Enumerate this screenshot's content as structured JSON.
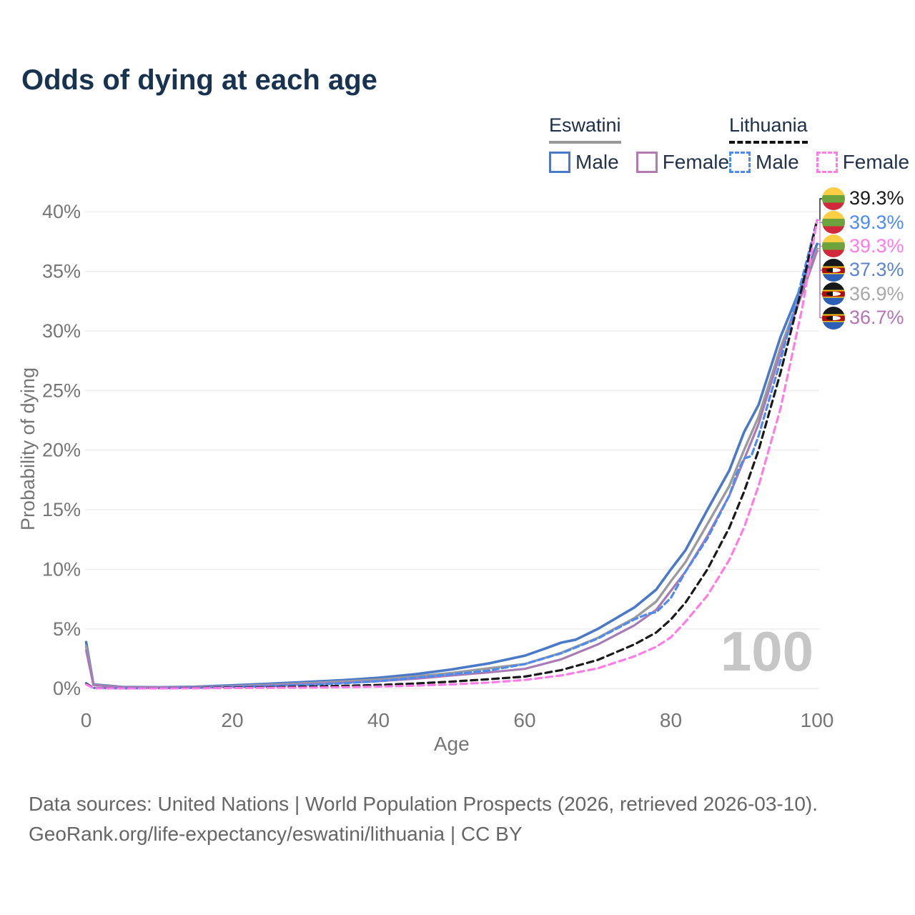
{
  "title": "Odds of dying at each age",
  "watermark": "100",
  "legend": {
    "eswatini": {
      "title": "Eswatini",
      "male": "Male",
      "female": "Female"
    },
    "lithuania": {
      "title": "Lithuania",
      "male": "Male",
      "female": "Female"
    }
  },
  "footer": {
    "line1": "Data sources: United Nations | World Population Prospects (2026, retrieved 2026-03-10).",
    "line2": "GeoRank.org/life-expectancy/eswatini/lithuania | CC BY"
  },
  "colors": {
    "title_text": "#18334f",
    "axis_text": "#767676",
    "gridline": "#ededed",
    "eswatini_male": "#4a79c8",
    "eswatini_total": "#9b9b9b",
    "eswatini_female": "#a97bb5",
    "lithuania_male": "#4d8bf0",
    "lithuania_total": "#1a1a1a",
    "lithuania_female": "#ff7ce6",
    "watermark": "#c6c6c6"
  },
  "chart_data": {
    "type": "line",
    "title": "Odds of dying at each age",
    "xlabel": "Age",
    "ylabel": "Probability of dying",
    "xlim": [
      0,
      100
    ],
    "ylim": [
      0,
      40
    ],
    "x_ticks": [
      0,
      20,
      40,
      60,
      80,
      100
    ],
    "y_ticks": [
      0,
      5,
      10,
      15,
      20,
      25,
      30,
      35,
      40
    ],
    "y_tick_suffix": "%",
    "grid": "horizontal",
    "legend_position": "top-right",
    "series": [
      {
        "key": "es_male",
        "name": "Eswatini Male",
        "style": "solid",
        "color": "#4a79c8",
        "width": 3.6,
        "dash": null,
        "points": [
          [
            0,
            3.9
          ],
          [
            1,
            0.35
          ],
          [
            5,
            0.13
          ],
          [
            10,
            0.11
          ],
          [
            15,
            0.15
          ],
          [
            20,
            0.27
          ],
          [
            25,
            0.4
          ],
          [
            30,
            0.55
          ],
          [
            35,
            0.7
          ],
          [
            40,
            0.9
          ],
          [
            45,
            1.2
          ],
          [
            50,
            1.6
          ],
          [
            55,
            2.1
          ],
          [
            60,
            2.75
          ],
          [
            63,
            3.4
          ],
          [
            65,
            3.85
          ],
          [
            67,
            4.1
          ],
          [
            70,
            5.0
          ],
          [
            75,
            6.8
          ],
          [
            78,
            8.3
          ],
          [
            80,
            10.0
          ],
          [
            82,
            11.6
          ],
          [
            85,
            15.0
          ],
          [
            88,
            18.3
          ],
          [
            90,
            21.5
          ],
          [
            92,
            23.8
          ],
          [
            95,
            29.5
          ],
          [
            98,
            34.0
          ],
          [
            100,
            37.3
          ]
        ]
      },
      {
        "key": "es_total",
        "name": "Eswatini Total",
        "style": "solid",
        "color": "#9b9b9b",
        "width": 3.4,
        "dash": null,
        "points": [
          [
            0,
            3.55
          ],
          [
            1,
            0.32
          ],
          [
            5,
            0.11
          ],
          [
            10,
            0.09
          ],
          [
            15,
            0.12
          ],
          [
            20,
            0.2
          ],
          [
            25,
            0.31
          ],
          [
            30,
            0.44
          ],
          [
            35,
            0.58
          ],
          [
            40,
            0.75
          ],
          [
            45,
            1.0
          ],
          [
            50,
            1.3
          ],
          [
            55,
            1.7
          ],
          [
            60,
            2.05
          ],
          [
            65,
            3.0
          ],
          [
            70,
            4.25
          ],
          [
            75,
            5.9
          ],
          [
            78,
            7.3
          ],
          [
            80,
            9.0
          ],
          [
            82,
            10.6
          ],
          [
            85,
            13.8
          ],
          [
            88,
            17.0
          ],
          [
            90,
            20.0
          ],
          [
            92,
            22.8
          ],
          [
            95,
            28.6
          ],
          [
            98,
            33.5
          ],
          [
            100,
            36.9
          ]
        ]
      },
      {
        "key": "es_female",
        "name": "Eswatini Female",
        "style": "solid",
        "color": "#a97bb5",
        "width": 3.2,
        "dash": null,
        "points": [
          [
            0,
            3.2
          ],
          [
            1,
            0.3
          ],
          [
            5,
            0.1
          ],
          [
            10,
            0.08
          ],
          [
            15,
            0.1
          ],
          [
            20,
            0.16
          ],
          [
            25,
            0.25
          ],
          [
            30,
            0.36
          ],
          [
            35,
            0.48
          ],
          [
            40,
            0.62
          ],
          [
            45,
            0.82
          ],
          [
            50,
            1.1
          ],
          [
            55,
            1.35
          ],
          [
            60,
            1.65
          ],
          [
            65,
            2.45
          ],
          [
            70,
            3.7
          ],
          [
            75,
            5.3
          ],
          [
            78,
            6.6
          ],
          [
            80,
            8.2
          ],
          [
            82,
            9.8
          ],
          [
            85,
            12.8
          ],
          [
            88,
            16.2
          ],
          [
            90,
            19.2
          ],
          [
            92,
            22.2
          ],
          [
            95,
            28.2
          ],
          [
            98,
            33.2
          ],
          [
            100,
            36.7
          ]
        ]
      },
      {
        "key": "lt_male",
        "name": "Lithuania Male",
        "style": "dashed",
        "color": "#4d8bf0",
        "width": 3.2,
        "dash": "8 5",
        "points": [
          [
            0,
            0.45
          ],
          [
            1,
            0.05
          ],
          [
            5,
            0.02
          ],
          [
            10,
            0.03
          ],
          [
            15,
            0.06
          ],
          [
            20,
            0.13
          ],
          [
            25,
            0.2
          ],
          [
            30,
            0.3
          ],
          [
            35,
            0.44
          ],
          [
            40,
            0.62
          ],
          [
            45,
            0.9
          ],
          [
            50,
            1.2
          ],
          [
            55,
            1.5
          ],
          [
            60,
            2.05
          ],
          [
            65,
            2.95
          ],
          [
            70,
            4.2
          ],
          [
            75,
            5.8
          ],
          [
            77,
            6.3
          ],
          [
            78,
            6.4
          ],
          [
            80,
            7.6
          ],
          [
            82,
            9.8
          ],
          [
            85,
            12.6
          ],
          [
            88,
            16.2
          ],
          [
            89,
            18.0
          ],
          [
            90,
            19.3
          ],
          [
            91,
            19.5
          ],
          [
            92,
            21.2
          ],
          [
            95,
            27.5
          ],
          [
            98,
            34.5
          ],
          [
            100,
            39.3
          ]
        ]
      },
      {
        "key": "lt_total",
        "name": "Lithuania Total",
        "style": "dashed",
        "color": "#1a1a1a",
        "width": 3.2,
        "dash": "9 6",
        "points": [
          [
            0,
            0.4
          ],
          [
            1,
            0.04
          ],
          [
            5,
            0.02
          ],
          [
            10,
            0.02
          ],
          [
            15,
            0.04
          ],
          [
            20,
            0.08
          ],
          [
            25,
            0.11
          ],
          [
            30,
            0.16
          ],
          [
            35,
            0.22
          ],
          [
            40,
            0.3
          ],
          [
            45,
            0.42
          ],
          [
            50,
            0.58
          ],
          [
            55,
            0.78
          ],
          [
            60,
            1.0
          ],
          [
            65,
            1.55
          ],
          [
            70,
            2.4
          ],
          [
            75,
            3.7
          ],
          [
            78,
            4.7
          ],
          [
            80,
            5.8
          ],
          [
            82,
            7.2
          ],
          [
            85,
            10.0
          ],
          [
            88,
            13.5
          ],
          [
            90,
            16.5
          ],
          [
            92,
            20.0
          ],
          [
            95,
            26.5
          ],
          [
            98,
            33.8
          ],
          [
            100,
            39.3
          ]
        ]
      },
      {
        "key": "lt_female",
        "name": "Lithuania Female",
        "style": "dashed",
        "color": "#ff7ce6",
        "width": 3.2,
        "dash": "9 6",
        "points": [
          [
            0,
            0.35
          ],
          [
            1,
            0.03
          ],
          [
            5,
            0.01
          ],
          [
            10,
            0.01
          ],
          [
            15,
            0.02
          ],
          [
            20,
            0.04
          ],
          [
            25,
            0.06
          ],
          [
            30,
            0.08
          ],
          [
            35,
            0.11
          ],
          [
            40,
            0.16
          ],
          [
            45,
            0.24
          ],
          [
            50,
            0.35
          ],
          [
            55,
            0.5
          ],
          [
            60,
            0.72
          ],
          [
            65,
            1.1
          ],
          [
            70,
            1.7
          ],
          [
            75,
            2.7
          ],
          [
            78,
            3.5
          ],
          [
            80,
            4.3
          ],
          [
            82,
            5.6
          ],
          [
            85,
            7.8
          ],
          [
            88,
            10.8
          ],
          [
            90,
            13.5
          ],
          [
            92,
            17.0
          ],
          [
            95,
            23.5
          ],
          [
            98,
            32.0
          ],
          [
            100,
            39.3
          ]
        ]
      }
    ],
    "end_labels": [
      {
        "series_key": "lt_total",
        "flag": "lt",
        "value": "39.3%",
        "color": "#1a1a1a"
      },
      {
        "series_key": "lt_male",
        "flag": "lt",
        "value": "39.3%",
        "color": "#4d8bf0"
      },
      {
        "series_key": "lt_female",
        "flag": "lt",
        "value": "39.3%",
        "color": "#ff7ce6"
      },
      {
        "series_key": "es_male",
        "flag": "sz",
        "value": "37.3%",
        "color": "#5b84cf"
      },
      {
        "series_key": "es_total",
        "flag": "sz",
        "value": "36.9%",
        "color": "#a8a8a8"
      },
      {
        "series_key": "es_female",
        "flag": "sz",
        "value": "36.7%",
        "color": "#b573b5"
      }
    ]
  }
}
